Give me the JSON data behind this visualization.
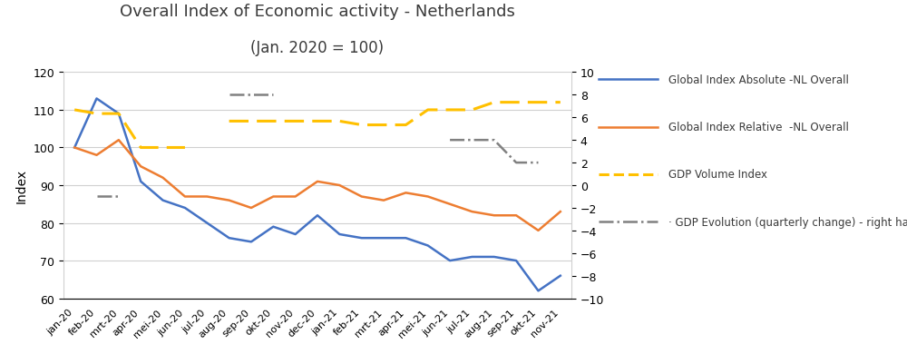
{
  "title_line1": "Overall Index of Economic activity - Netherlands",
  "title_line2": "(Jan. 2020 = 100)",
  "ylabel_left": "Index",
  "x_labels": [
    "jan-20",
    "feb-20",
    "mrt-20",
    "apr-20",
    "mei-20",
    "jun-20",
    "jul-20",
    "aug-20",
    "sep-20",
    "okt-20",
    "nov-20",
    "dec-20",
    "jan-21",
    "feb-21",
    "mrt-21",
    "apr-21",
    "mei-21",
    "jun-21",
    "jul-21",
    "aug-21",
    "sep-21",
    "okt-21",
    "nov-21"
  ],
  "global_index_absolute": [
    100,
    113,
    109,
    91,
    86,
    84,
    80,
    76,
    75,
    79,
    77,
    82,
    77,
    76,
    76,
    76,
    74,
    70,
    71,
    71,
    70,
    62,
    66
  ],
  "global_index_relative": [
    100,
    98,
    102,
    95,
    92,
    87,
    87,
    86,
    84,
    87,
    87,
    91,
    90,
    87,
    86,
    88,
    87,
    85,
    83,
    82,
    82,
    78,
    83
  ],
  "gdp_volume_index": [
    110,
    109,
    109,
    100,
    100,
    100,
    null,
    107,
    107,
    107,
    107,
    107,
    107,
    106,
    106,
    106,
    110,
    110,
    110,
    112,
    112,
    112,
    112
  ],
  "gdp_evolution_right": [
    null,
    -1,
    -1,
    null,
    null,
    null,
    null,
    8,
    8,
    8,
    null,
    null,
    null,
    null,
    null,
    null,
    null,
    4,
    4,
    4,
    2,
    2,
    null
  ],
  "color_absolute": "#4472C4",
  "color_relative": "#ED7D31",
  "color_gdp_volume": "#FFC000",
  "color_gdp_evolution": "#808080",
  "ylim_left": [
    60,
    120
  ],
  "ylim_right": [
    -10,
    10
  ],
  "yticks_left": [
    60,
    70,
    80,
    90,
    100,
    110,
    120
  ],
  "yticks_right": [
    -10,
    -8,
    -6,
    -4,
    -2,
    0,
    2,
    4,
    6,
    8,
    10
  ],
  "legend_labels": [
    "Global Index Absolute -NL Overall",
    "Global Index Relative  -NL Overall",
    "GDP Volume Index",
    "· GDP Evolution (quarterly change) - right hand scale"
  ],
  "background_color": "#ffffff",
  "grid_color": "#d0d0d0",
  "title_fontsize": 13,
  "subtitle_fontsize": 12
}
